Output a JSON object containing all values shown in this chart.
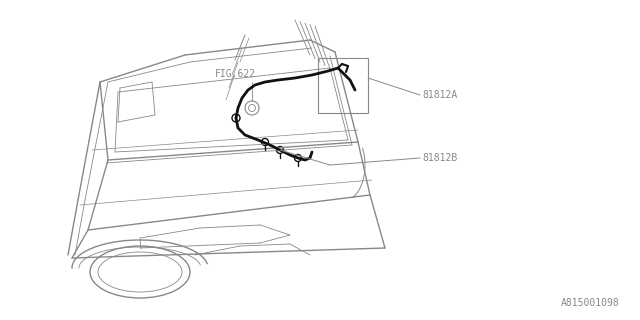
{
  "bg_color": "#ffffff",
  "line_color": "#888888",
  "dark_line_color": "#111111",
  "label_81812A": "81812A",
  "label_81812B": "81812B",
  "label_fig622": "FIG.622",
  "label_ref": "A815001098",
  "label_fontsize": 7,
  "ref_fontsize": 7
}
